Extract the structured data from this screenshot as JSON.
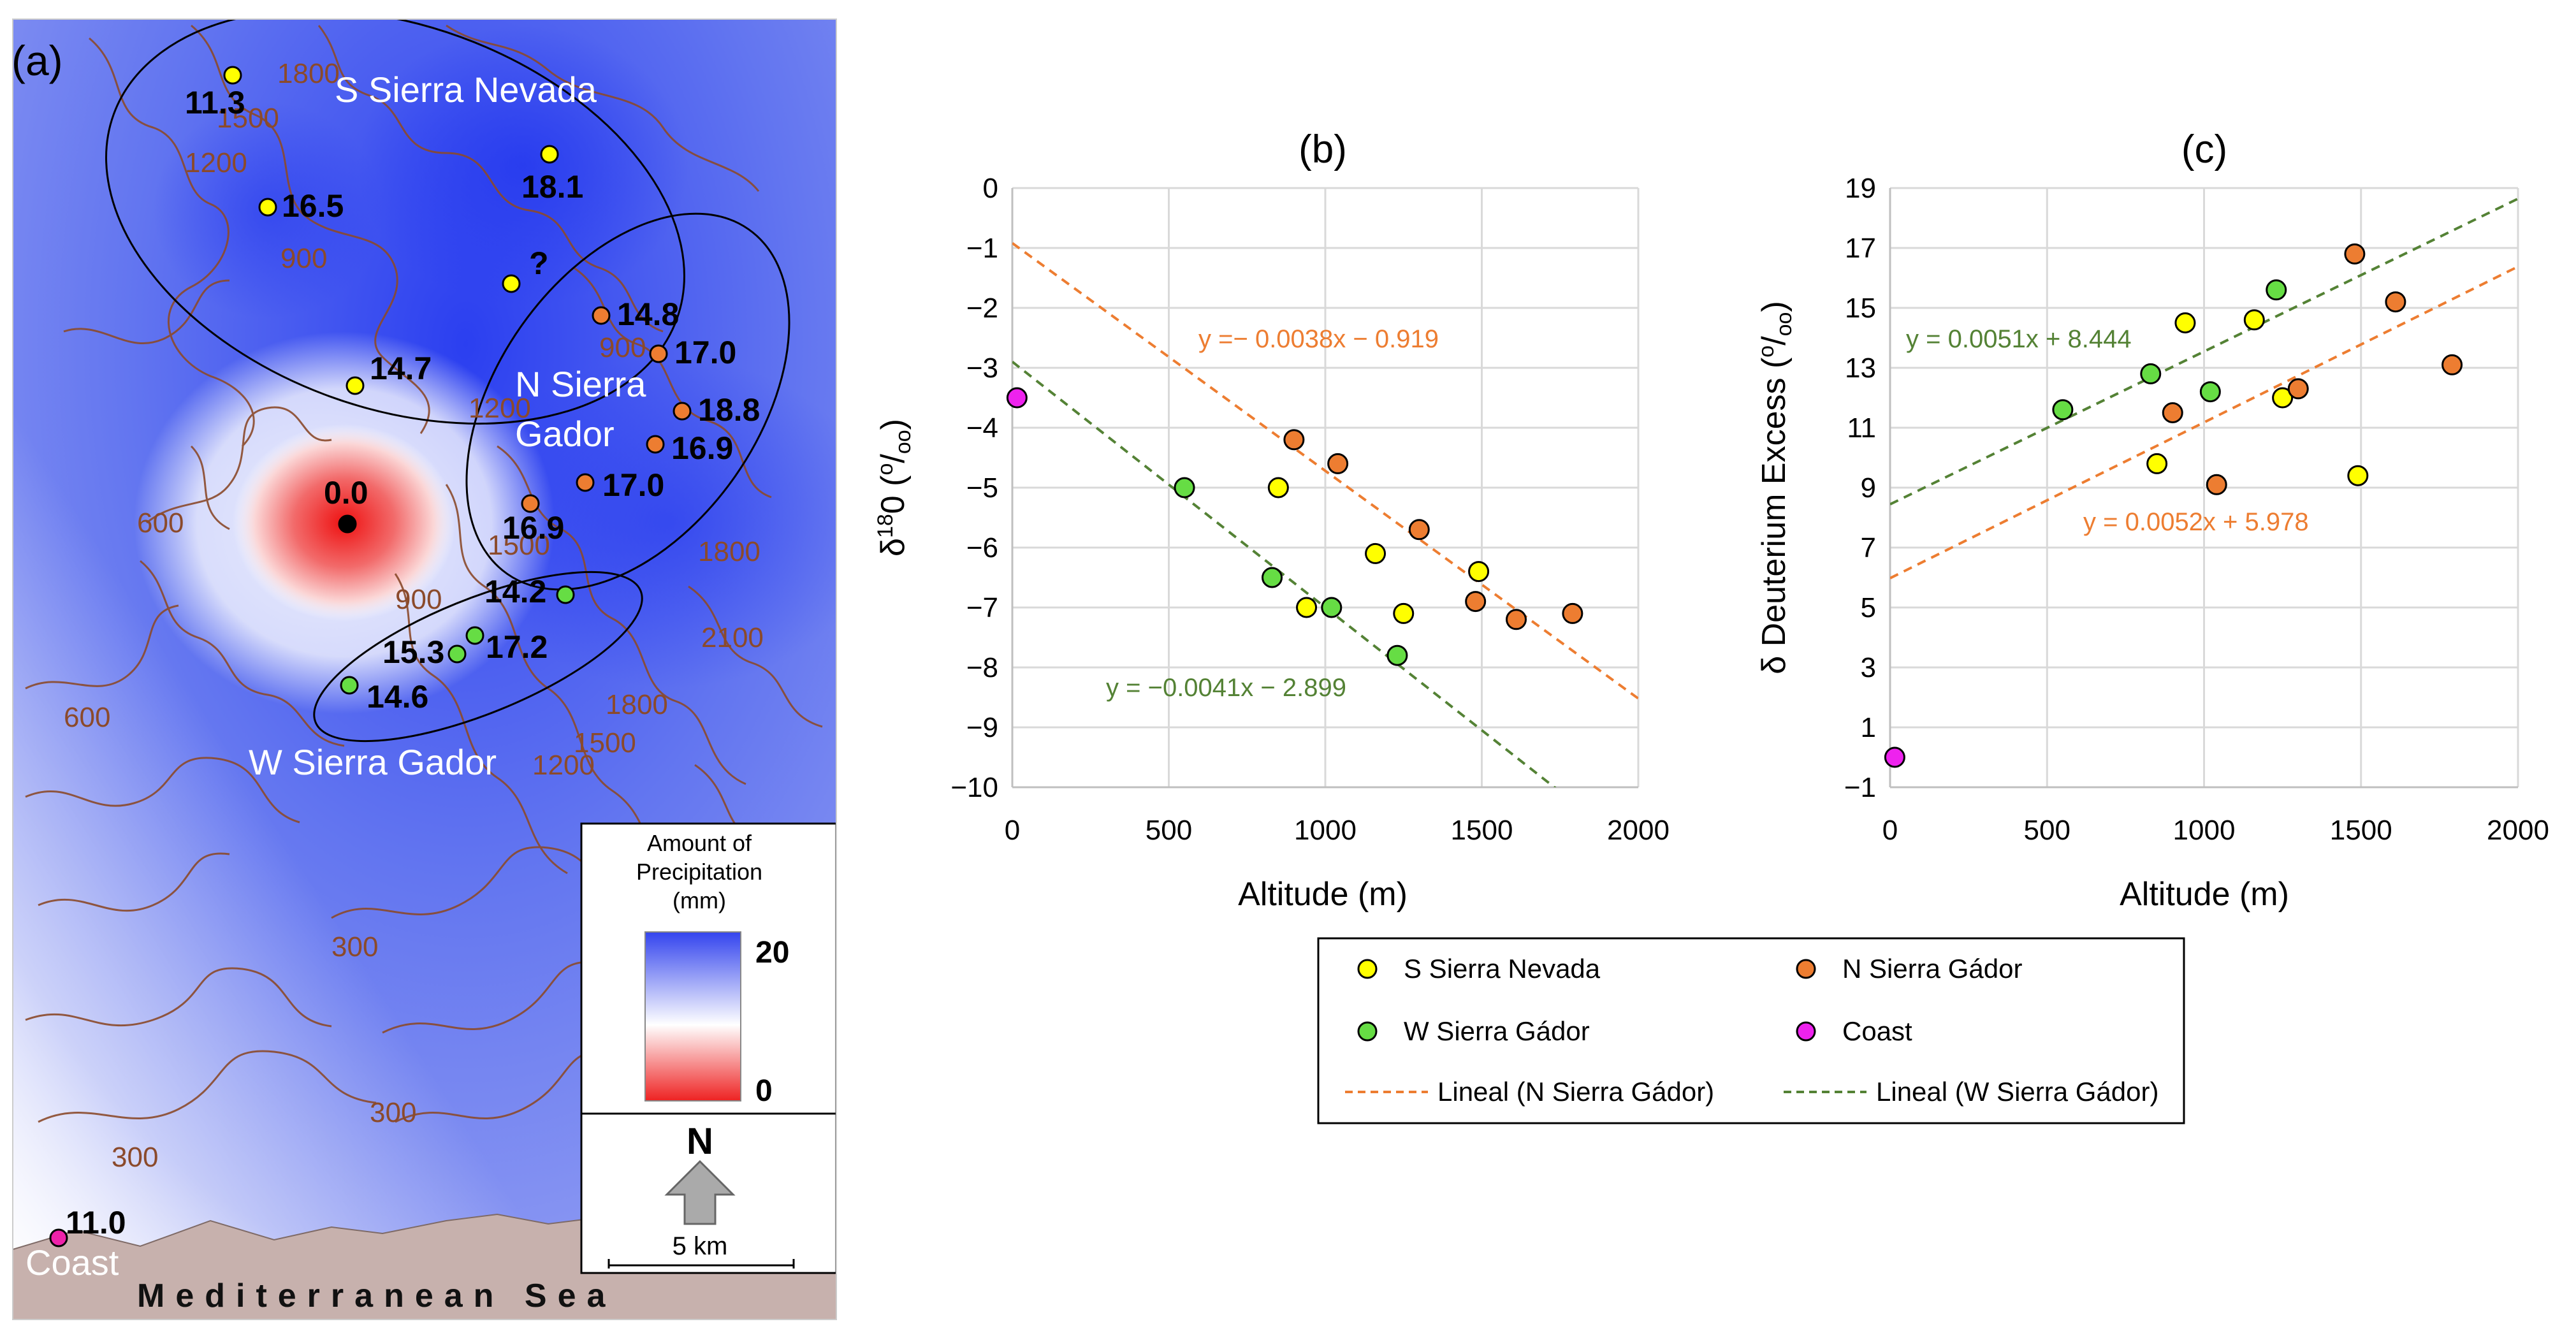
{
  "map": {
    "panel_label": "(a)",
    "region_labels": {
      "s_nevada": "S Sierra Nevada",
      "n_gador_1": "N Sierra",
      "n_gador_2": "Gador",
      "w_gador": "W Sierra Gador",
      "coast": "Coast",
      "sea": "Mediterranean Sea"
    },
    "sites": [
      {
        "label": "11.3",
        "group": "S Sierra Nevada"
      },
      {
        "label": "18.1",
        "group": "S Sierra Nevada"
      },
      {
        "label": "16.5",
        "group": "S Sierra Nevada"
      },
      {
        "label": "?",
        "group": "S Sierra Nevada"
      },
      {
        "label": "14.7",
        "group": "S Sierra Nevada"
      },
      {
        "label": "14.8",
        "group": "N Sierra Gádor"
      },
      {
        "label": "17.0",
        "group": "N Sierra Gádor"
      },
      {
        "label": "18.8",
        "group": "N Sierra Gádor"
      },
      {
        "label": "16.9",
        "group": "N Sierra Gádor"
      },
      {
        "label": "17.0",
        "group": "N Sierra Gádor"
      },
      {
        "label": "16.9",
        "group": "N Sierra Gádor"
      },
      {
        "label": "0.0",
        "group": "center"
      },
      {
        "label": "14.2",
        "group": "W Sierra Gádor"
      },
      {
        "label": "17.2",
        "group": "W Sierra Gádor"
      },
      {
        "label": "15.3",
        "group": "W Sierra Gádor"
      },
      {
        "label": "14.6",
        "group": "W Sierra Gádor"
      },
      {
        "label": "11.0",
        "group": "Coast"
      }
    ],
    "contour_labels": [
      "1800",
      "1500",
      "1200",
      "900",
      "900",
      "1200",
      "600",
      "900",
      "1500",
      "1800",
      "1500",
      "1200",
      "1800",
      "2100",
      "600",
      "300",
      "300",
      "300"
    ],
    "precip_legend": {
      "title_lines": [
        "Amount of",
        "Precipitation",
        "(mm)"
      ],
      "max": "20",
      "min": "0",
      "colors": {
        "high": "#3344ee",
        "mid": "#ffffff",
        "low": "#ee2222"
      }
    },
    "north_label": "N",
    "scale_label": "5 km"
  },
  "chart_data": [
    {
      "panel": "(b)",
      "type": "scatter",
      "xlabel": "Altitude (m)",
      "ylabel_prefix": "δ",
      "ylabel_sup": "18",
      "ylabel_main": "0 (",
      "ylabel_unit_sup": "o",
      "ylabel_unit_sub": "oo",
      "ylabel_suffix": ")",
      "xlim": [
        0,
        2000
      ],
      "ylim": [
        -10,
        0
      ],
      "xticks": [
        0,
        500,
        1000,
        1500,
        2000
      ],
      "yticks": [
        0,
        -1,
        -2,
        -3,
        -4,
        -5,
        -6,
        -7,
        -8,
        -9,
        -10
      ],
      "series": [
        {
          "name": "S Sierra Nevada",
          "color": "#ffff00",
          "points": [
            [
              850,
              -5.0
            ],
            [
              940,
              -7.0
            ],
            [
              1160,
              -6.1
            ],
            [
              1250,
              -7.1
            ],
            [
              1490,
              -6.4
            ]
          ]
        },
        {
          "name": "N Sierra Gádor",
          "color": "#ed7d31",
          "points": [
            [
              900,
              -4.2
            ],
            [
              1040,
              -4.6
            ],
            [
              1300,
              -5.7
            ],
            [
              1480,
              -6.9
            ],
            [
              1610,
              -7.2
            ],
            [
              1790,
              -7.1
            ]
          ]
        },
        {
          "name": "W Sierra Gádor",
          "color": "#66dd44",
          "points": [
            [
              550,
              -5.0
            ],
            [
              830,
              -6.5
            ],
            [
              1020,
              -7.0
            ],
            [
              1230,
              -7.8
            ]
          ]
        },
        {
          "name": "Coast",
          "color": "#ee22ee",
          "points": [
            [
              15,
              -3.5
            ]
          ]
        }
      ],
      "trendlines": [
        {
          "name": "Lineal (N Sierra Gádor)",
          "color": "#ed7d31",
          "slope": -0.0038,
          "intercept": -0.919,
          "equation": "y =− 0.0038x − 0.919"
        },
        {
          "name": "Lineal (W Sierra Gádor)",
          "color": "#548235",
          "slope": -0.0041,
          "intercept": -2.899,
          "equation": "y = −0.0041x − 2.899"
        }
      ]
    },
    {
      "panel": "(c)",
      "type": "scatter",
      "xlabel": "Altitude (m)",
      "ylabel_prefix": "δ Deuterium Excess (",
      "ylabel_unit_sup": "o",
      "ylabel_unit_sub": "oo",
      "ylabel_suffix": ")",
      "xlim": [
        0,
        2000
      ],
      "ylim": [
        -1,
        19
      ],
      "xticks": [
        0,
        500,
        1000,
        1500,
        2000
      ],
      "yticks": [
        19,
        17,
        15,
        13,
        11,
        9,
        7,
        5,
        3,
        1,
        -1
      ],
      "series": [
        {
          "name": "S Sierra Nevada",
          "color": "#ffff00",
          "points": [
            [
              850,
              9.8
            ],
            [
              940,
              14.5
            ],
            [
              1160,
              14.6
            ],
            [
              1250,
              12.0
            ],
            [
              1490,
              9.4
            ]
          ]
        },
        {
          "name": "N Sierra Gádor",
          "color": "#ed7d31",
          "points": [
            [
              900,
              11.5
            ],
            [
              1040,
              9.1
            ],
            [
              1300,
              12.3
            ],
            [
              1480,
              16.8
            ],
            [
              1610,
              15.2
            ],
            [
              1790,
              13.1
            ]
          ]
        },
        {
          "name": "W Sierra Gádor",
          "color": "#66dd44",
          "points": [
            [
              550,
              11.6
            ],
            [
              830,
              12.8
            ],
            [
              1020,
              12.2
            ],
            [
              1230,
              15.6
            ]
          ]
        },
        {
          "name": "Coast",
          "color": "#ee22ee",
          "points": [
            [
              15,
              0.0
            ]
          ]
        }
      ],
      "trendlines": [
        {
          "name": "Lineal (N Sierra Gádor)",
          "color": "#ed7d31",
          "slope": 0.0052,
          "intercept": 5.978,
          "equation": "y = 0.0052x + 5.978"
        },
        {
          "name": "Lineal (W Sierra Gádor)",
          "color": "#548235",
          "slope": 0.0051,
          "intercept": 8.444,
          "equation": "y = 0.0051x + 8.444"
        }
      ]
    }
  ],
  "legend": {
    "items": [
      {
        "label": "S Sierra Nevada",
        "kind": "marker",
        "color": "#ffff00"
      },
      {
        "label": "N Sierra Gádor",
        "kind": "marker",
        "color": "#ed7d31"
      },
      {
        "label": "W Sierra Gádor",
        "kind": "marker",
        "color": "#66dd44"
      },
      {
        "label": "Coast",
        "kind": "marker",
        "color": "#ee22ee"
      },
      {
        "label": "Lineal (N Sierra Gádor)",
        "kind": "line",
        "color": "#ed7d31"
      },
      {
        "label": "Lineal (W Sierra Gádor)",
        "kind": "line",
        "color": "#548235"
      }
    ]
  }
}
